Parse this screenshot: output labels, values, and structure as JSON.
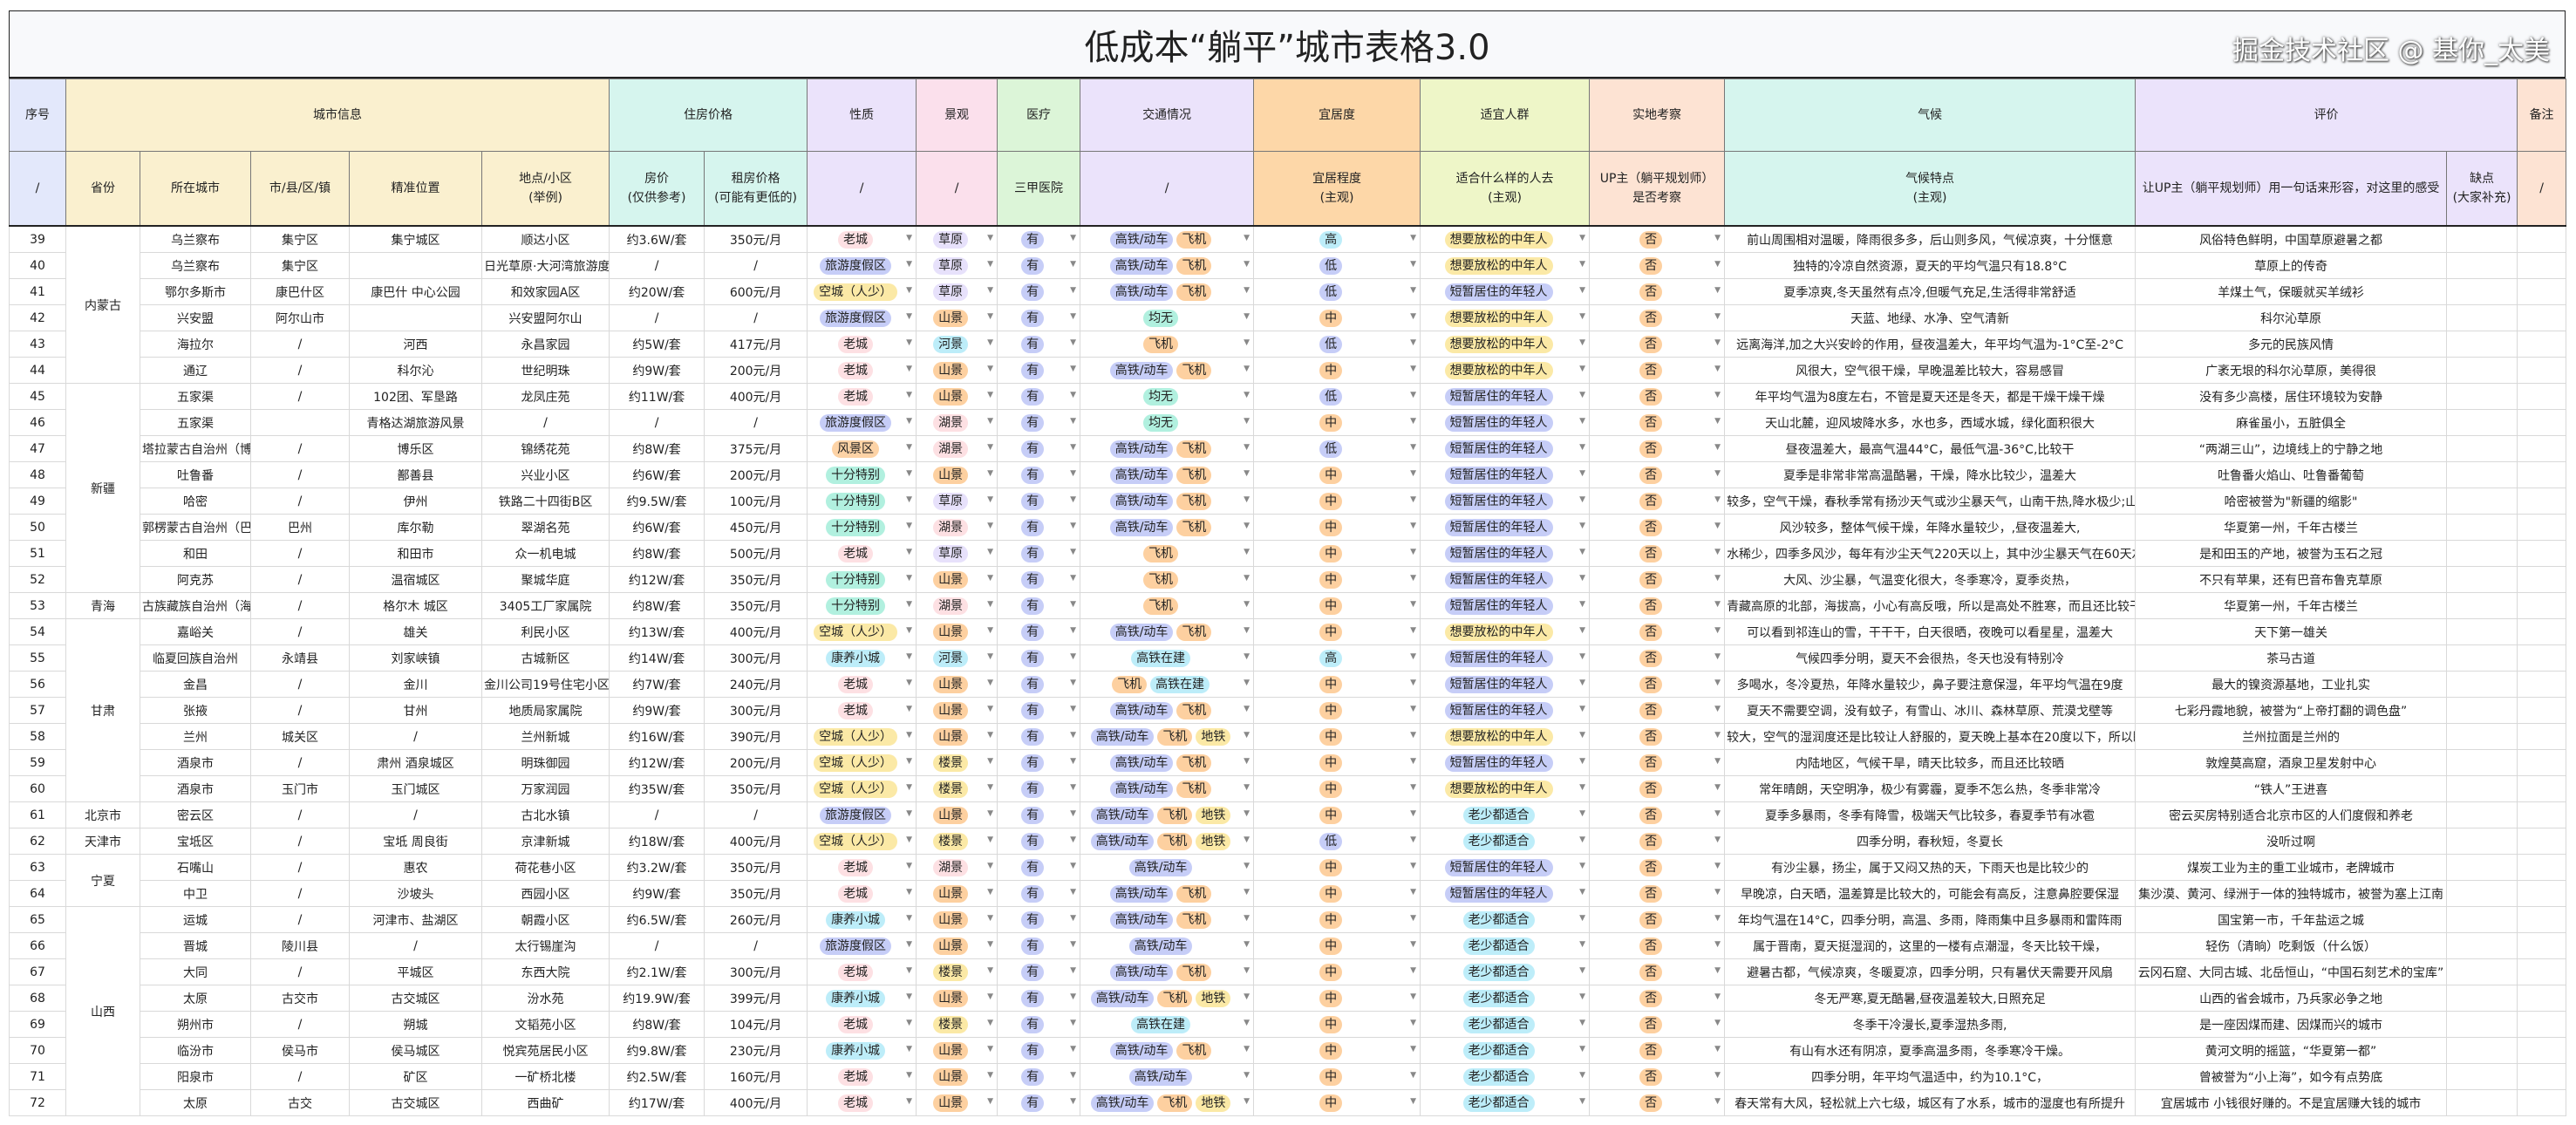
{
  "title": "低成本“躺平”城市表格3.0",
  "header_groups": [
    {
      "label": "序号",
      "span": 1,
      "color": "#e3e8fb"
    },
    {
      "label": "城市信息",
      "span": 5,
      "color": "#faf0cf"
    },
    {
      "label": "住房价格",
      "span": 2,
      "color": "#d6f5ee"
    },
    {
      "label": "性质",
      "span": 1,
      "color": "#ebe3fb"
    },
    {
      "label": "景观",
      "span": 1,
      "color": "#fbe0ec"
    },
    {
      "label": "医疗",
      "span": 1,
      "color": "#dcf5d8"
    },
    {
      "label": "交通情况",
      "span": 1,
      "color": "#ebe3fb"
    },
    {
      "label": "宜居度",
      "span": 1,
      "color": "#fdd7a8"
    },
    {
      "label": "适宜人群",
      "span": 1,
      "color": "#eef6c8"
    },
    {
      "label": "实地考察",
      "span": 1,
      "color": "#fde3d3"
    },
    {
      "label": "气候",
      "span": 1,
      "color": "#d6f5ee"
    },
    {
      "label": "评价",
      "span": 2,
      "color": "#ebe3fb"
    },
    {
      "label": "备注",
      "span": 1,
      "color": "#fde3d3"
    }
  ],
  "sub_headers": [
    {
      "label": "/",
      "color": "#e3e8fb"
    },
    {
      "label": "省份",
      "color": "#faf0cf"
    },
    {
      "label": "所在城市",
      "color": "#faf0cf"
    },
    {
      "label": "市/县/区/镇",
      "color": "#faf0cf"
    },
    {
      "label": "精准位置",
      "color": "#faf0cf"
    },
    {
      "label": "地点/小区\n(举例)",
      "color": "#faf0cf"
    },
    {
      "label": "房价\n(仅供参考)",
      "color": "#d6f5ee"
    },
    {
      "label": "租房价格\n(可能有更低的)",
      "color": "#d6f5ee"
    },
    {
      "label": "/",
      "color": "#ebe3fb"
    },
    {
      "label": "/",
      "color": "#fbe0ec"
    },
    {
      "label": "三甲医院",
      "color": "#dcf5d8"
    },
    {
      "label": "/",
      "color": "#ebe3fb"
    },
    {
      "label": "宜居程度\n(主观)",
      "color": "#fdd7a8"
    },
    {
      "label": "适合什么样的人去\n(主观)",
      "color": "#eef6c8"
    },
    {
      "label": "UP主（躺平规划师）\n是否考察",
      "color": "#fde3d3"
    },
    {
      "label": "气候特点\n(主观)",
      "color": "#d6f5ee"
    },
    {
      "label": "让UP主（躺平规划师）用一句话来形容，对这里的感受",
      "color": "#ebe3fb"
    },
    {
      "label": "缺点\n(大家补充)",
      "color": "#ebe3fb"
    },
    {
      "label": "/",
      "color": "#fde3d3"
    }
  ],
  "tag_colors": {
    "老城": "#fde0e3",
    "旅游度假区": "#c6cdf7",
    "空城（人少）": "#fbe9a6",
    "风景区": "#fdd3a6",
    "十分特别": "#b1f0df",
    "康养小城": "#bdedf9",
    "草原": "#e7e1fb",
    "山景": "#fdd0a0",
    "河景": "#bdedf9",
    "湖景": "#fde0e3",
    "楼景": "#fbe9a6",
    "有": "#c6cdf7",
    "高铁/动车": "#c6cdf7",
    "飞机": "#fdd0a0",
    "地铁": "#fbe9a6",
    "均无": "#b1f0df",
    "高铁在建": "#bdedf9",
    "高": "#bdedf9",
    "中": "#fdd0a0",
    "低": "#c6cdf7",
    "想要放松的中年人": "#fbe9a6",
    "短暂居住的年轻人": "#c6cdf7",
    "老少都适合": "#bdedf9",
    "否": "#fdd0a0"
  },
  "rows": [
    {
      "no": "39",
      "province": "内蒙古",
      "city": "乌兰察布",
      "county": "集宁区",
      "location": "集宁城区",
      "place": "顺达小区",
      "price": "约3.6W/套",
      "rent": "350元/月",
      "nature": "老城",
      "scenery": "草原",
      "medical": "有",
      "transport": [
        "高铁/动车",
        "飞机"
      ],
      "livability": "高",
      "crowd": "想要放松的中年人",
      "visited": "否",
      "climate": "前山周围相对温暖，降雨很多多，后山则多风，气候凉爽，十分惬意",
      "comment": "风俗特色鲜明，中国草原避暑之都"
    },
    {
      "no": "40",
      "province": "内蒙古",
      "city": "乌兰察布",
      "county": "集宁区",
      "location": "",
      "place": "日光草原·大河湾旅游度假区",
      "price": "/",
      "rent": "/",
      "nature": "旅游度假区",
      "scenery": "草原",
      "medical": "有",
      "transport": [
        "高铁/动车",
        "飞机"
      ],
      "livability": "低",
      "crowd": "想要放松的中年人",
      "visited": "否",
      "climate": "独特的冷凉自然资源，夏天的平均气温只有18.8°C",
      "comment": "草原上的传奇"
    },
    {
      "no": "41",
      "province": "内蒙古",
      "city": "鄂尔多斯市",
      "county": "康巴什区",
      "location": "康巴什 中心公园",
      "place": "和效家园A区",
      "price": "约20W/套",
      "rent": "600元/月",
      "nature": "空城（人少）",
      "scenery": "草原",
      "medical": "有",
      "transport": [
        "高铁/动车",
        "飞机"
      ],
      "livability": "低",
      "crowd": "短暂居住的年轻人",
      "visited": "否",
      "climate": "夏季凉爽,冬天虽然有点冷,但暖气充足,生活得非常舒适",
      "comment": "羊煤土气，保暖就买羊绒衫"
    },
    {
      "no": "42",
      "province": "内蒙古",
      "city": "兴安盟",
      "county": "阿尔山市",
      "location": "",
      "place": "兴安盟阿尔山",
      "price": "/",
      "rent": "/",
      "nature": "旅游度假区",
      "scenery": "山景",
      "medical": "有",
      "transport": [
        "均无"
      ],
      "livability": "中",
      "crowd": "想要放松的中年人",
      "visited": "否",
      "climate": "天蓝、地绿、水净、空气清新",
      "comment": "科尔沁草原"
    },
    {
      "no": "43",
      "province": "内蒙古",
      "city": "海拉尔",
      "county": "/",
      "location": "河西",
      "place": "永昌家园",
      "price": "约5W/套",
      "rent": "417元/月",
      "nature": "老城",
      "scenery": "河景",
      "medical": "有",
      "transport": [
        "飞机"
      ],
      "livability": "低",
      "crowd": "想要放松的中年人",
      "visited": "否",
      "climate": "远离海洋,加之大兴安岭的作用，昼夜温差大，年平均气温为-1°C至-2°C",
      "comment": "多元的民族风情"
    },
    {
      "no": "44",
      "province": "内蒙古",
      "city": "通辽",
      "county": "/",
      "location": "科尔沁",
      "place": "世纪明珠",
      "price": "约9W/套",
      "rent": "200元/月",
      "nature": "老城",
      "scenery": "山景",
      "medical": "有",
      "transport": [
        "高铁/动车",
        "飞机"
      ],
      "livability": "中",
      "crowd": "想要放松的中年人",
      "visited": "否",
      "climate": "风很大，空气很干燥，早晚温差比较大，容易感冒",
      "comment": "广袤无垠的科尔沁草原，美得很"
    },
    {
      "no": "45",
      "province": "新疆",
      "city": "五家渠",
      "county": "/",
      "location": "102团、军垦路",
      "place": "龙凤庄苑",
      "price": "约11W/套",
      "rent": "400元/月",
      "nature": "老城",
      "scenery": "山景",
      "medical": "有",
      "transport": [
        "均无"
      ],
      "livability": "低",
      "crowd": "短暂居住的年轻人",
      "visited": "否",
      "climate": "年平均气温为8度左右，不管是夏天还是冬天，都是干燥干燥干燥",
      "comment": "没有多少高楼，居住环境较为安静"
    },
    {
      "no": "46",
      "province": "新疆",
      "city": "五家渠",
      "county": "",
      "location": "青格达湖旅游风景",
      "place": "/",
      "price": "/",
      "rent": "/",
      "nature": "旅游度假区",
      "scenery": "湖景",
      "medical": "有",
      "transport": [
        "均无"
      ],
      "livability": "中",
      "crowd": "短暂居住的年轻人",
      "visited": "否",
      "climate": "天山北麓，迎风坡降水多，水也多，西域水城，绿化面积很大",
      "comment": "麻雀虽小，五脏俱全"
    },
    {
      "no": "47",
      "province": "新疆",
      "city": "塔拉蒙古自治州（博",
      "county": "/",
      "location": "博乐区",
      "place": "锦绣花苑",
      "price": "约8W/套",
      "rent": "375元/月",
      "nature": "风景区",
      "scenery": "湖景",
      "medical": "有",
      "transport": [
        "高铁/动车",
        "飞机"
      ],
      "livability": "低",
      "crowd": "短暂居住的年轻人",
      "visited": "否",
      "climate": "昼夜温差大，最高气温44°C，最低气温-36°C,比较干",
      "comment": "“两湖三山”，边境线上的宁静之地"
    },
    {
      "no": "48",
      "province": "新疆",
      "city": "吐鲁番",
      "county": "/",
      "location": "鄯善县",
      "place": "兴业小区",
      "price": "约6W/套",
      "rent": "200元/月",
      "nature": "十分特别",
      "scenery": "山景",
      "medical": "有",
      "transport": [
        "高铁/动车",
        "飞机"
      ],
      "livability": "中",
      "crowd": "短暂居住的年轻人",
      "visited": "否",
      "climate": "夏季是非常非常高温酷暑，干燥，降水比较少，温差大",
      "comment": "吐鲁番火焰山、吐鲁番葡萄"
    },
    {
      "no": "49",
      "province": "新疆",
      "city": "哈密",
      "county": "/",
      "location": "伊州",
      "place": "铁路二十四街B区",
      "price": "约9.5W/套",
      "rent": "100元/月",
      "nature": "十分特别",
      "scenery": "草原",
      "medical": "有",
      "transport": [
        "高铁/动车",
        "飞机"
      ],
      "livability": "中",
      "crowd": "短暂居住的年轻人",
      "visited": "否",
      "climate": "较多，空气干燥，春秋季常有扬沙天气或沙尘暴天气，山南干热,降水极少;山北",
      "comment": "哈密被誉为\"新疆的缩影\""
    },
    {
      "no": "50",
      "province": "新疆",
      "city": "郭楞蒙古自治州（巴",
      "county": "巴州",
      "location": "库尔勒",
      "place": "翠湖名苑",
      "price": "约6W/套",
      "rent": "450元/月",
      "nature": "十分特别",
      "scenery": "湖景",
      "medical": "有",
      "transport": [
        "高铁/动车",
        "飞机"
      ],
      "livability": "中",
      "crowd": "短暂居住的年轻人",
      "visited": "否",
      "climate": "风沙较多，整体气候干燥，年降水量较少，,昼夜温差大,",
      "comment": "华夏第一州，千年古楼兰"
    },
    {
      "no": "51",
      "province": "新疆",
      "city": "和田",
      "county": "/",
      "location": "和田市",
      "place": "众一机电城",
      "price": "约8W/套",
      "rent": "500元/月",
      "nature": "老城",
      "scenery": "草原",
      "medical": "有",
      "transport": [
        "飞机"
      ],
      "livability": "中",
      "crowd": "短暂居住的年轻人",
      "visited": "否",
      "climate": "水稀少，四季多风沙，每年有沙尘天气220天以上，其中沙尘暴天气在60天左右",
      "comment": "是和田玉的产地，被誉为玉石之冠"
    },
    {
      "no": "52",
      "province": "新疆",
      "city": "阿克苏",
      "county": "/",
      "location": "温宿城区",
      "place": "聚城华庭",
      "price": "约12W/套",
      "rent": "350元/月",
      "nature": "十分特别",
      "scenery": "山景",
      "medical": "有",
      "transport": [
        "飞机"
      ],
      "livability": "中",
      "crowd": "短暂居住的年轻人",
      "visited": "否",
      "climate": "大风、沙尘暴，气温变化很大，冬季寒冷，夏季炎热，",
      "comment": "不只有苹果，还有巴音布鲁克草原"
    },
    {
      "no": "53",
      "province": "青海",
      "city": "古族藏族自治州（海",
      "county": "/",
      "location": "格尔木 城区",
      "place": "3405工厂家属院",
      "price": "约8W/套",
      "rent": "350元/月",
      "nature": "十分特别",
      "scenery": "湖景",
      "medical": "有",
      "transport": [
        "飞机"
      ],
      "livability": "中",
      "crowd": "短暂居住的年轻人",
      "visited": "否",
      "climate": "青藏高原的北部，海拔高，小心有高反哦，所以是高处不胜寒，而且还比较干",
      "comment": "华夏第一州，千年古楼兰"
    },
    {
      "no": "54",
      "province": "甘肃",
      "city": "嘉峪关",
      "county": "/",
      "location": "雄关",
      "place": "利民小区",
      "price": "约13W/套",
      "rent": "400元/月",
      "nature": "空城（人少）",
      "scenery": "山景",
      "medical": "有",
      "transport": [
        "高铁/动车",
        "飞机"
      ],
      "livability": "中",
      "crowd": "想要放松的中年人",
      "visited": "否",
      "climate": "可以看到祁连山的雪，干干干，白天很晒，夜晚可以看星星，温差大",
      "comment": "天下第一雄关"
    },
    {
      "no": "55",
      "province": "甘肃",
      "city": "临夏回族自治州",
      "county": "永靖县",
      "location": "刘家峡镇",
      "place": "古城新区",
      "price": "约14W/套",
      "rent": "300元/月",
      "nature": "康养小城",
      "scenery": "河景",
      "medical": "有",
      "transport": [
        "高铁在建"
      ],
      "livability": "高",
      "crowd": "短暂居住的年轻人",
      "visited": "否",
      "climate": "气候四季分明，夏天不会很热，冬天也没有特别冷",
      "comment": "茶马古道"
    },
    {
      "no": "56",
      "province": "甘肃",
      "city": "金昌",
      "county": "/",
      "location": "金川",
      "place": "金川公司19号住宅小区",
      "price": "约7W/套",
      "rent": "240元/月",
      "nature": "老城",
      "scenery": "山景",
      "medical": "有",
      "transport": [
        "飞机",
        "高铁在建"
      ],
      "livability": "中",
      "crowd": "短暂居住的年轻人",
      "visited": "否",
      "climate": "多喝水，冬冷夏热，年降水量较少，鼻子要注意保湿，年平均气温在9度",
      "comment": "最大的镍资源基地，工业扎实"
    },
    {
      "no": "57",
      "province": "甘肃",
      "city": "张掖",
      "county": "/",
      "location": "甘州",
      "place": "地质局家属院",
      "price": "约9W/套",
      "rent": "300元/月",
      "nature": "老城",
      "scenery": "山景",
      "medical": "有",
      "transport": [
        "高铁/动车",
        "飞机"
      ],
      "livability": "中",
      "crowd": "短暂居住的年轻人",
      "visited": "否",
      "climate": "夏天不需要空调，没有蚊子，有雪山、冰川、森林草原、荒漠戈壁等",
      "comment": "七彩丹霞地貌，被誉为“上帝打翻的调色盘”"
    },
    {
      "no": "58",
      "province": "甘肃",
      "city": "兰州",
      "county": "城关区",
      "location": "/",
      "place": "兰州新城",
      "price": "约16W/套",
      "rent": "390元/月",
      "nature": "空城（人少）",
      "scenery": "山景",
      "medical": "有",
      "transport": [
        "高铁/动车",
        "飞机",
        "地铁"
      ],
      "livability": "中",
      "crowd": "想要放松的中年人",
      "visited": "否",
      "climate": "较大，空气的湿润度还是比较让人舒服的，夏天晚上基本在20度以下，所以睡",
      "comment": "兰州拉面是兰州的"
    },
    {
      "no": "59",
      "province": "甘肃",
      "city": "酒泉市",
      "county": "/",
      "location": "肃州 酒泉城区",
      "place": "明珠御园",
      "price": "约12W/套",
      "rent": "200元/月",
      "nature": "空城（人少）",
      "scenery": "楼景",
      "medical": "有",
      "transport": [
        "高铁/动车",
        "飞机"
      ],
      "livability": "中",
      "crowd": "短暂居住的年轻人",
      "visited": "否",
      "climate": "内陆地区，气候干旱，晴天比较多，而且还比较晒",
      "comment": "敦煌莫高窟，酒泉卫星发射中心"
    },
    {
      "no": "60",
      "province": "甘肃",
      "city": "酒泉市",
      "county": "玉门市",
      "location": "玉门城区",
      "place": "万家润园",
      "price": "约35W/套",
      "rent": "350元/月",
      "nature": "空城（人少）",
      "scenery": "楼景",
      "medical": "有",
      "transport": [
        "高铁/动车",
        "飞机"
      ],
      "livability": "中",
      "crowd": "想要放松的中年人",
      "visited": "否",
      "climate": "常年晴朗，天空明净，极少有雾霾，夏季不怎么热，冬季非常冷",
      "comment": "“铁人”王进喜"
    },
    {
      "no": "61",
      "province": "北京市",
      "city": "密云区",
      "county": "/",
      "location": "/",
      "place": "古北水镇",
      "price": "/",
      "rent": "/",
      "nature": "旅游度假区",
      "scenery": "山景",
      "medical": "有",
      "transport": [
        "高铁/动车",
        "飞机",
        "地铁"
      ],
      "livability": "中",
      "crowd": "老少都适合",
      "visited": "否",
      "climate": "夏季多暴雨，冬季有降雪，极端天气比较多，春夏季节有冰雹",
      "comment": "密云买房特别适合北京市区的人们度假和养老"
    },
    {
      "no": "62",
      "province": "天津市",
      "city": "宝坻区",
      "county": "/",
      "location": "宝坻 周良街",
      "place": "京津新城",
      "price": "约18W/套",
      "rent": "400元/月",
      "nature": "空城（人少）",
      "scenery": "楼景",
      "medical": "有",
      "transport": [
        "高铁/动车",
        "飞机",
        "地铁"
      ],
      "livability": "低",
      "crowd": "老少都适合",
      "visited": "否",
      "climate": "四季分明，春秋短，冬夏长",
      "comment": "没听过啊"
    },
    {
      "no": "63",
      "province": "宁夏",
      "city": "石嘴山",
      "county": "/",
      "location": "惠农",
      "place": "荷花巷小区",
      "price": "约3.2W/套",
      "rent": "350元/月",
      "nature": "老城",
      "scenery": "湖景",
      "medical": "有",
      "transport": [
        "高铁/动车"
      ],
      "livability": "中",
      "crowd": "短暂居住的年轻人",
      "visited": "否",
      "climate": "有沙尘暴，扬尘，属于又闷又热的天，下雨天也是比较少的",
      "comment": "煤炭工业为主的重工业城市，老牌城市"
    },
    {
      "no": "64",
      "province": "宁夏",
      "city": "中卫",
      "county": "/",
      "location": "沙坡头",
      "place": "西园小区",
      "price": "约9W/套",
      "rent": "350元/月",
      "nature": "老城",
      "scenery": "山景",
      "medical": "有",
      "transport": [
        "高铁/动车",
        "飞机"
      ],
      "livability": "中",
      "crowd": "短暂居住的年轻人",
      "visited": "否",
      "climate": "早晚凉，白天晒，温差算是比较大的，可能会有高反，注意鼻腔要保湿",
      "comment": "集沙漠、黄河、绿洲于一体的独特城市，被誉为塞上江南"
    },
    {
      "no": "65",
      "province": "山西",
      "city": "运城",
      "county": "/",
      "location": "河津市、盐湖区",
      "place": "朝霞小区",
      "price": "约6.5W/套",
      "rent": "260元/月",
      "nature": "康养小城",
      "scenery": "山景",
      "medical": "有",
      "transport": [
        "高铁/动车",
        "飞机"
      ],
      "livability": "中",
      "crowd": "老少都适合",
      "visited": "否",
      "climate": "年均气温在14°C，四季分明，高温、多雨，降雨集中且多暴雨和雷阵雨",
      "comment": "国宝第一市，千年盐运之城"
    },
    {
      "no": "66",
      "province": "山西",
      "city": "晋城",
      "county": "陵川县",
      "location": "/",
      "place": "太行锡崖沟",
      "price": "/",
      "rent": "/",
      "nature": "旅游度假区",
      "scenery": "山景",
      "medical": "有",
      "transport": [
        "高铁/动车"
      ],
      "livability": "中",
      "crowd": "老少都适合",
      "visited": "否",
      "climate": "属于晋南，夏天挺湿润的，这里的一楼有点潮湿，冬天比较干燥，",
      "comment": "轻伤（清晌）吃剩饭（什么饭）"
    },
    {
      "no": "67",
      "province": "山西",
      "city": "大同",
      "county": "/",
      "location": "平城区",
      "place": "东西大院",
      "price": "约2.1W/套",
      "rent": "300元/月",
      "nature": "老城",
      "scenery": "楼景",
      "medical": "有",
      "transport": [
        "高铁/动车",
        "飞机"
      ],
      "livability": "中",
      "crowd": "老少都适合",
      "visited": "否",
      "climate": "避暑古都，气候凉爽，冬暖夏凉，四季分明，只有暑伏天需要开风扇",
      "comment": "云冈石窟、大同古城、北岳恒山，“中国石刻艺术的宝库”"
    },
    {
      "no": "68",
      "province": "山西",
      "city": "太原",
      "county": "古交市",
      "location": "古交城区",
      "place": "汾水苑",
      "price": "约19.9W/套",
      "rent": "399元/月",
      "nature": "康养小城",
      "scenery": "山景",
      "medical": "有",
      "transport": [
        "高铁/动车",
        "飞机",
        "地铁"
      ],
      "livability": "中",
      "crowd": "老少都适合",
      "visited": "否",
      "climate": "冬无严寒,夏无酷暑,昼夜温差较大,日照充足",
      "comment": "山西的省会城市，乃兵家必争之地"
    },
    {
      "no": "69",
      "province": "山西",
      "city": "朔州市",
      "county": "/",
      "location": "朔城",
      "place": "文韬苑小区",
      "price": "约8W/套",
      "rent": "104元/月",
      "nature": "老城",
      "scenery": "楼景",
      "medical": "有",
      "transport": [
        "高铁在建"
      ],
      "livability": "中",
      "crowd": "老少都适合",
      "visited": "否",
      "climate": "冬季干冷漫长,夏季湿热多雨,",
      "comment": "是一座因煤而建、因煤而兴的城市"
    },
    {
      "no": "70",
      "province": "山西",
      "city": "临汾市",
      "county": "侯马市",
      "location": "侯马城区",
      "place": "悦宾苑居民小区",
      "price": "约9.8W/套",
      "rent": "230元/月",
      "nature": "康养小城",
      "scenery": "山景",
      "medical": "有",
      "transport": [
        "高铁/动车",
        "飞机"
      ],
      "livability": "中",
      "crowd": "老少都适合",
      "visited": "否",
      "climate": "有山有水还有阴凉，夏季高温多雨，冬季寒冷干燥。",
      "comment": "黄河文明的摇篮，“华夏第一都”"
    },
    {
      "no": "71",
      "province": "山西",
      "city": "阳泉市",
      "county": "/",
      "location": "矿区",
      "place": "一矿桥北楼",
      "price": "约2.5W/套",
      "rent": "160元/月",
      "nature": "老城",
      "scenery": "山景",
      "medical": "有",
      "transport": [
        "高铁/动车"
      ],
      "livability": "中",
      "crowd": "老少都适合",
      "visited": "否",
      "climate": "四季分明，年平均气温适中，约为10.1°C，",
      "comment": "曾被誉为“小上海”，如今有点势底"
    },
    {
      "no": "72",
      "province": "山西",
      "city": "太原",
      "county": "古交",
      "location": "古交城区",
      "place": "西曲矿",
      "price": "约17W/套",
      "rent": "400元/月",
      "nature": "老城",
      "scenery": "山景",
      "medical": "有",
      "transport": [
        "高铁/动车",
        "飞机",
        "地铁"
      ],
      "livability": "中",
      "crowd": "老少都适合",
      "visited": "否",
      "climate": "春天常有大风，轻松就上六七级，城区有了水系，城市的湿度也有所提升",
      "comment": "宜居城市 小钱很好赚的。不是宜居赚大钱的城市"
    }
  ],
  "watermark": "掘金技术社区 @ 基你_太美"
}
